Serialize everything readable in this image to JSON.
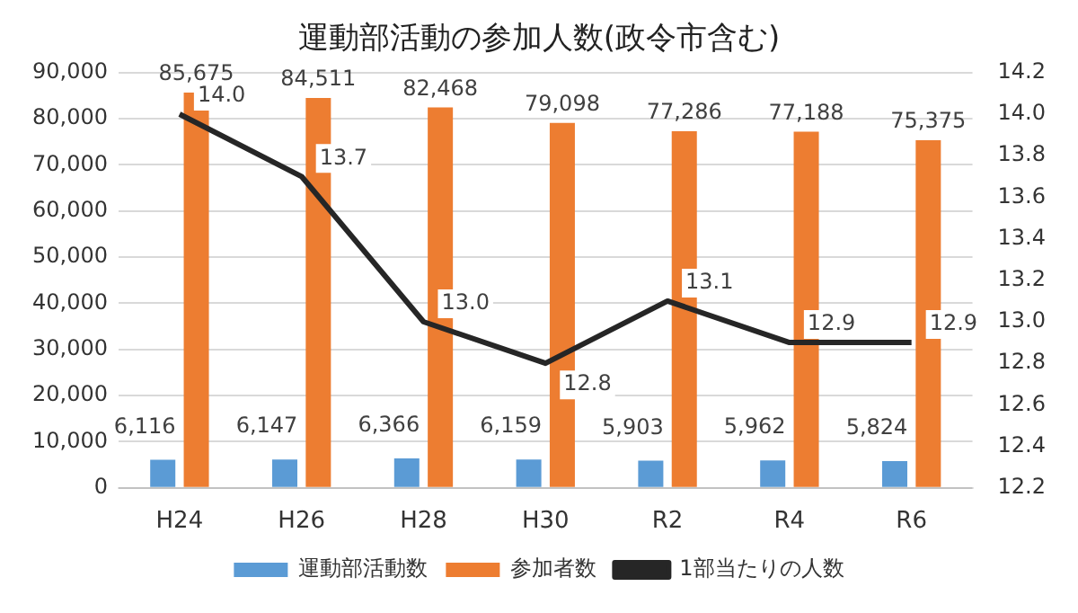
{
  "chart_data": {
    "type": "bar",
    "title": "運動部活動の参加人数(政令市含む)",
    "categories": [
      "H24",
      "H26",
      "H28",
      "H30",
      "R2",
      "R4",
      "R6"
    ],
    "series": [
      {
        "name": "運動部活動数",
        "color": "#5b9bd5",
        "values": [
          6116,
          6147,
          6366,
          6159,
          5903,
          5962,
          5824
        ],
        "value_labels": [
          "6,116",
          "6,147",
          "6,366",
          "6,159",
          "5,903",
          "5,962",
          "5,824"
        ]
      },
      {
        "name": "参加者数",
        "color": "#ed7d31",
        "values": [
          85675,
          84511,
          82468,
          79098,
          77286,
          77188,
          75375
        ],
        "value_labels": [
          "85,675",
          "84,511",
          "82,468",
          "79,098",
          "77,286",
          "77,188",
          "75,375"
        ]
      },
      {
        "name": "1部当たりの人数",
        "type": "line",
        "axis": "y2",
        "color": "#262626",
        "marker": "none",
        "values": [
          14.0,
          13.7,
          13.0,
          12.8,
          13.1,
          12.9,
          12.9
        ],
        "value_labels": [
          "14.0",
          "13.7",
          "13.0",
          "12.8",
          "13.1",
          "12.9",
          "12.9"
        ]
      }
    ],
    "ylim": [
      0,
      90000
    ],
    "yticks": [
      0,
      {
        "value": 10000,
        "label": "10,000"
      },
      {
        "value": 20000,
        "label": "20,000"
      },
      {
        "value": 30000,
        "label": "30,000"
      },
      {
        "value": 40000,
        "label": "40,000"
      },
      {
        "value": 50000,
        "label": "50,000"
      },
      {
        "value": 60000,
        "label": "60,000"
      },
      {
        "value": 70000,
        "label": "70,000"
      },
      {
        "value": 80000,
        "label": "80,000"
      },
      {
        "value": 90000,
        "label": "90,000"
      }
    ],
    "y2lim": [
      12.2,
      14.2
    ],
    "y2ticks": [
      12.2,
      12.4,
      12.6,
      12.8,
      {
        "value": 13,
        "label": "13.0"
      },
      13.2,
      13.4,
      13.6,
      13.8,
      {
        "value": 14,
        "label": "14.0"
      },
      14.2
    ],
    "grid": "y",
    "legend": "bottom"
  }
}
